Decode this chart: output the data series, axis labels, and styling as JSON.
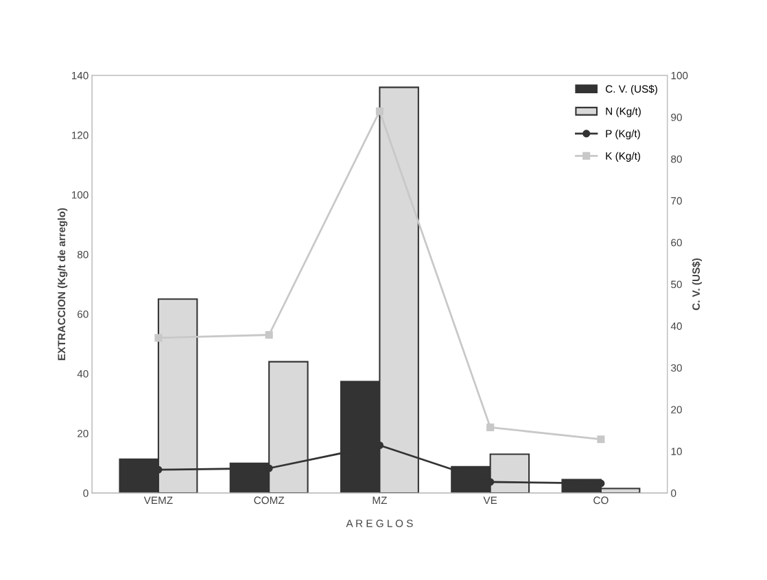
{
  "chart_data": {
    "type": "bar",
    "xlabel": "A R E G L O S",
    "ylabel": "EXTRACCION (Kg/t de arreglo)",
    "y2label": "C. V. (US$)",
    "categories": [
      "VEMZ",
      "COMZ",
      "MZ",
      "VE",
      "CO"
    ],
    "series": [
      {
        "name": "C. V. (US$)",
        "axis": "y2",
        "color": "#333333",
        "values": [
          8.1,
          7.1,
          26.7,
          6.3,
          3.2
        ]
      },
      {
        "name": "N (Kg/t)",
        "color": "#d9d9d9",
        "values": [
          65,
          44,
          136,
          13,
          1.5
        ]
      },
      {
        "name": "P (Kg/t)",
        "type": "line",
        "color": "#333333",
        "marker": "circle",
        "values": [
          7.8,
          8.3,
          16,
          3.7,
          3.2
        ]
      },
      {
        "name": "K (Kg/t)",
        "type": "line",
        "color": "#c8c8c8",
        "marker": "square",
        "values": [
          52,
          53,
          128,
          22,
          18
        ]
      }
    ],
    "ylim": [
      0,
      140
    ],
    "yticks": [
      0,
      20,
      40,
      60,
      80,
      100,
      120,
      140
    ],
    "y2lim": [
      0,
      100
    ],
    "y2ticks": [
      0,
      10,
      20,
      30,
      40,
      50,
      60,
      70,
      80,
      90,
      100
    ],
    "legend": "top right",
    "grid": false
  }
}
